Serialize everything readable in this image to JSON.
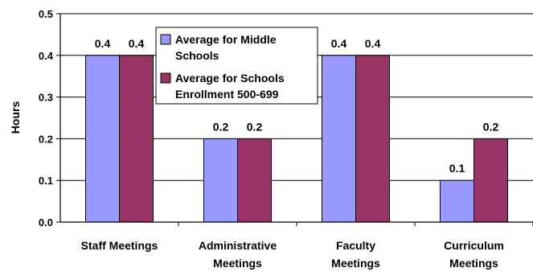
{
  "chart_data": {
    "type": "bar",
    "title": "",
    "xlabel": "",
    "ylabel": "Hours",
    "ylim": [
      0,
      0.5
    ],
    "yticks": [
      "0.0",
      "0.1",
      "0.2",
      "0.3",
      "0.4",
      "0.5"
    ],
    "categories": [
      [
        "Staff Meetings"
      ],
      [
        "Administrative",
        "Meetings"
      ],
      [
        "Faculty",
        "Meetings"
      ],
      [
        "Curriculum",
        "Meetings"
      ]
    ],
    "series": [
      {
        "name": [
          "Average for Middle",
          "Schools"
        ],
        "color": "#9999FF",
        "values": [
          0.4,
          0.2,
          0.4,
          0.1
        ],
        "labels": [
          "0.4",
          "0.2",
          "0.4",
          "0.1"
        ]
      },
      {
        "name": [
          "Average for Schools",
          "Enrollment 500-699"
        ],
        "color": "#993366",
        "values": [
          0.4,
          0.2,
          0.4,
          0.2
        ],
        "labels": [
          "0.4",
          "0.2",
          "0.4",
          "0.2"
        ]
      }
    ],
    "grid": true,
    "legend": "top-center"
  }
}
